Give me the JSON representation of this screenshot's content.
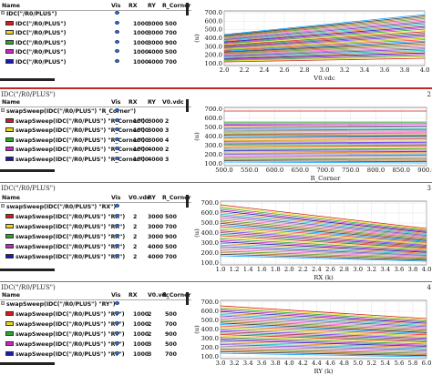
{
  "panels": [
    {
      "title": "",
      "page_num": "",
      "columns": [
        "Name",
        "Vis",
        "RX",
        "RY",
        "R_Corner"
      ],
      "rows": [
        {
          "name": "IDC(\"/R0/PLUS\")",
          "values": [
            "",
            "",
            ""
          ],
          "color": "#ffffff"
        },
        {
          "name": "IDC(\"/R0/PLUS\")",
          "values": [
            "1000",
            "3000",
            "500"
          ],
          "color": "#d81b1b"
        },
        {
          "name": "IDC(\"/R0/PLUS\")",
          "values": [
            "1000",
            "3000",
            "700"
          ],
          "color": "#e8d619"
        },
        {
          "name": "IDC(\"/R0/PLUS\")",
          "values": [
            "1000",
            "3000",
            "900"
          ],
          "color": "#2aa82a"
        },
        {
          "name": "IDC(\"/R0/PLUS\")",
          "values": [
            "1000",
            "4000",
            "500"
          ],
          "color": "#c727c7"
        },
        {
          "name": "IDC(\"/R0/PLUS\")",
          "values": [
            "1000",
            "4000",
            "700"
          ],
          "color": "#1b1bb3"
        }
      ],
      "plot": {
        "ylabel": "(u)",
        "xlabel": "V0.vdc",
        "x_ticks": [
          "2.0",
          "2.2",
          "2.4",
          "2.6",
          "2.8",
          "3.0",
          "3.2",
          "3.4",
          "3.6",
          "3.8",
          "4.0"
        ],
        "y_ticks": [
          "700.0",
          "600.0",
          "500.0",
          "400.0",
          "300.0",
          "200.0",
          "100.0"
        ]
      }
    },
    {
      "title": "IDC(\"/R0/PLUS\")",
      "page_num": "2",
      "columns": [
        "Name",
        "Vis",
        "RX",
        "RY",
        "V0.vdc"
      ],
      "rows": [
        {
          "name": "swapSweep(IDC(\"/R0/PLUS\") \"R_Corner\")",
          "values": [
            "",
            "",
            ""
          ],
          "color": "#ffffff"
        },
        {
          "name": "swapSweep(IDC(\"/R0/PLUS\") \"R_Corner\")",
          "values": [
            "1000",
            "3000",
            "2"
          ],
          "color": "#d81b1b"
        },
        {
          "name": "swapSweep(IDC(\"/R0/PLUS\") \"R_Corner\")",
          "values": [
            "1000",
            "3000",
            "3"
          ],
          "color": "#e8d619"
        },
        {
          "name": "swapSweep(IDC(\"/R0/PLUS\") \"R_Corner\")",
          "values": [
            "1000",
            "3000",
            "4"
          ],
          "color": "#2aa82a"
        },
        {
          "name": "swapSweep(IDC(\"/R0/PLUS\") \"R_Corner\")",
          "values": [
            "1000",
            "4000",
            "2"
          ],
          "color": "#c727c7"
        },
        {
          "name": "swapSweep(IDC(\"/R0/PLUS\") \"R_Corner\")",
          "values": [
            "1000",
            "4000",
            "3"
          ],
          "color": "#1b1bb3"
        }
      ],
      "plot": {
        "ylabel": "(u)",
        "xlabel": "R_Corner",
        "x_ticks": [
          "500.0",
          "550.0",
          "600.0",
          "650.0",
          "700.0",
          "750.0",
          "800.0",
          "850.0",
          "900.0"
        ],
        "y_ticks": [
          "700.0",
          "600.0",
          "500.0",
          "400.0",
          "300.0",
          "200.0",
          "100.0"
        ]
      }
    },
    {
      "title": "IDC(\"/R0/PLUS\")",
      "page_num": "3",
      "columns": [
        "Name",
        "Vis",
        "V0.vdc",
        "RY",
        "R_Corner"
      ],
      "rows": [
        {
          "name": "swapSweep(IDC(\"/R0/PLUS\") \"RX\")",
          "values": [
            "",
            "",
            ""
          ],
          "color": "#ffffff"
        },
        {
          "name": "swapSweep(IDC(\"/R0/PLUS\") \"RX\")",
          "values": [
            "2",
            "3000",
            "500"
          ],
          "color": "#d81b1b"
        },
        {
          "name": "swapSweep(IDC(\"/R0/PLUS\") \"RX\")",
          "values": [
            "2",
            "3000",
            "700"
          ],
          "color": "#e8d619"
        },
        {
          "name": "swapSweep(IDC(\"/R0/PLUS\") \"RX\")",
          "values": [
            "2",
            "3000",
            "900"
          ],
          "color": "#2aa82a"
        },
        {
          "name": "swapSweep(IDC(\"/R0/PLUS\") \"RX\")",
          "values": [
            "2",
            "4000",
            "500"
          ],
          "color": "#c727c7"
        },
        {
          "name": "swapSweep(IDC(\"/R0/PLUS\") \"RX\")",
          "values": [
            "2",
            "4000",
            "700"
          ],
          "color": "#1b1bb3"
        }
      ],
      "plot": {
        "ylabel": "(u)",
        "xlabel": "RX (k)",
        "x_ticks": [
          "1.0",
          "1.2",
          "1.4",
          "1.6",
          "1.8",
          "2.0",
          "2.2",
          "2.4",
          "2.6",
          "2.8",
          "3.0",
          "3.2",
          "3.4",
          "3.6",
          "3.8",
          "4.0"
        ],
        "y_ticks": [
          "700.0",
          "600.0",
          "500.0",
          "400.0",
          "300.0",
          "200.0",
          "100.0"
        ]
      }
    },
    {
      "title": "IDC(\"/R0/PLUS\")",
      "page_num": "4",
      "columns": [
        "Name",
        "Vis",
        "RX",
        "V0.vdc",
        "R_Corner"
      ],
      "rows": [
        {
          "name": "swapSweep(IDC(\"/R0/PLUS\") \"RY\")",
          "values": [
            "",
            "",
            ""
          ],
          "color": "#ffffff"
        },
        {
          "name": "swapSweep(IDC(\"/R0/PLUS\") \"RY\")",
          "values": [
            "1000",
            "2",
            "500"
          ],
          "color": "#d81b1b"
        },
        {
          "name": "swapSweep(IDC(\"/R0/PLUS\") \"RY\")",
          "values": [
            "1000",
            "2",
            "700"
          ],
          "color": "#e8d619"
        },
        {
          "name": "swapSweep(IDC(\"/R0/PLUS\") \"RY\")",
          "values": [
            "1000",
            "2",
            "900"
          ],
          "color": "#2aa82a"
        },
        {
          "name": "swapSweep(IDC(\"/R0/PLUS\") \"RY\")",
          "values": [
            "1000",
            "3",
            "500"
          ],
          "color": "#c727c7"
        },
        {
          "name": "swapSweep(IDC(\"/R0/PLUS\") \"RY\")",
          "values": [
            "1000",
            "3",
            "700"
          ],
          "color": "#1b1bb3"
        }
      ],
      "plot": {
        "ylabel": "(u)",
        "xlabel": "RY (k)",
        "x_ticks": [
          "3.0",
          "3.2",
          "3.4",
          "3.6",
          "3.8",
          "4.0",
          "4.2",
          "4.4",
          "4.6",
          "4.8",
          "5.0",
          "5.2",
          "5.4",
          "5.6",
          "5.8",
          "6.0"
        ],
        "y_ticks": [
          "700.0",
          "600.0",
          "500.0",
          "400.0",
          "300.0",
          "200.0",
          "100.0"
        ]
      }
    }
  ],
  "line_palette": [
    "#d81b1b",
    "#e8d619",
    "#2aa82a",
    "#c727c7",
    "#1b1bb3",
    "#e67e1a",
    "#19c2c2",
    "#7a3dc7",
    "#888888",
    "#ff66cc",
    "#5a9a1a",
    "#b5651d",
    "#333333",
    "#00a0ff",
    "#ff3333",
    "#9bd11a",
    "#d4a017",
    "#6633ff",
    "#aa2255",
    "#229977"
  ]
}
